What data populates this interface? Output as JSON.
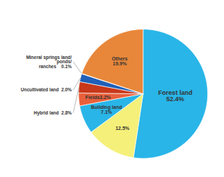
{
  "chart_data": {
    "type": "pie",
    "categories": [
      "Forest land\n52.4%",
      "12.5%",
      "Building land\n7.1%",
      "Fields3.2%",
      "Hybrid land  2.8%",
      "Uncultivated land  2.0%",
      "Mineral springs land/\nponds/\nranches    0.1%",
      "Others\n19.9%"
    ],
    "values": [
      52.4,
      12.5,
      7.1,
      3.2,
      2.8,
      2.0,
      0.1,
      19.9
    ],
    "colors": [
      "#29B5E8",
      "#F5F07A",
      "#29B5E8",
      "#E8603C",
      "#C8381A",
      "#2060B8",
      "#E8A020",
      "#E8873A"
    ]
  }
}
